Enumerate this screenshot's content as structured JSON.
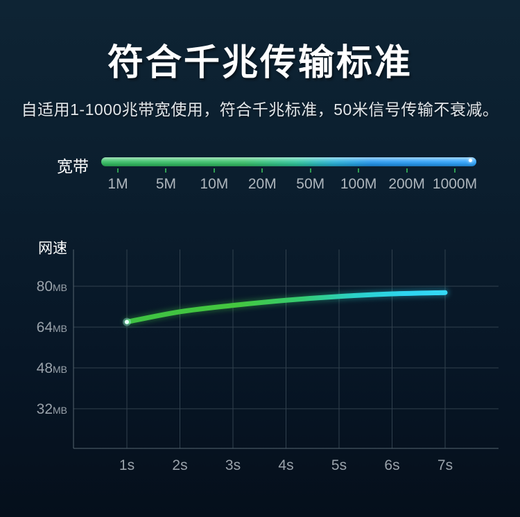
{
  "page": {
    "title": "符合千兆传输标准",
    "subtitle": "自适用1-1000兆带宽使用，符合千兆标准，50米信号传输不衰减。"
  },
  "colors": {
    "background_top": "#0e2434",
    "background_bottom": "#050f1b",
    "title_text": "#ffffff",
    "subtitle_text": "#e2e6e9",
    "axis_label_text": "#9aa3ab",
    "scale_label_text": "#aeb6bd",
    "grid_line": "#31414e",
    "axis_line": "#55656f",
    "tick_green": "#2f9e52",
    "endpoint_dot": "#ffffff",
    "bar_gradient": [
      "#33bd62",
      "#38c169",
      "#2fc79b",
      "#28b2d8",
      "#2497ef",
      "#2ea5ff"
    ],
    "line_gradient": [
      "#3fc243",
      "#44c83f",
      "#35cb72",
      "#2bd2cb",
      "#2ed5f1",
      "#35d9f6"
    ]
  },
  "bandwidth": {
    "label": "宽带",
    "scale_labels": [
      "1M",
      "5M",
      "10M",
      "20M",
      "50M",
      "100M",
      "200M",
      "1000M"
    ]
  },
  "chart_data": {
    "type": "line",
    "title": "网速",
    "categories": [
      "1s",
      "2s",
      "3s",
      "4s",
      "5s",
      "6s",
      "7s"
    ],
    "series": [
      {
        "name": "网速",
        "unit": "MB",
        "values": [
          66,
          70,
          72.5,
          74.5,
          76,
          77,
          77.5
        ]
      }
    ],
    "yticks": [
      80,
      64,
      48,
      32
    ],
    "y_unit": "MB",
    "ylim": [
      16.5,
      94
    ],
    "xlabel": "",
    "ylabel": "网速",
    "grid": true,
    "legend": false
  }
}
